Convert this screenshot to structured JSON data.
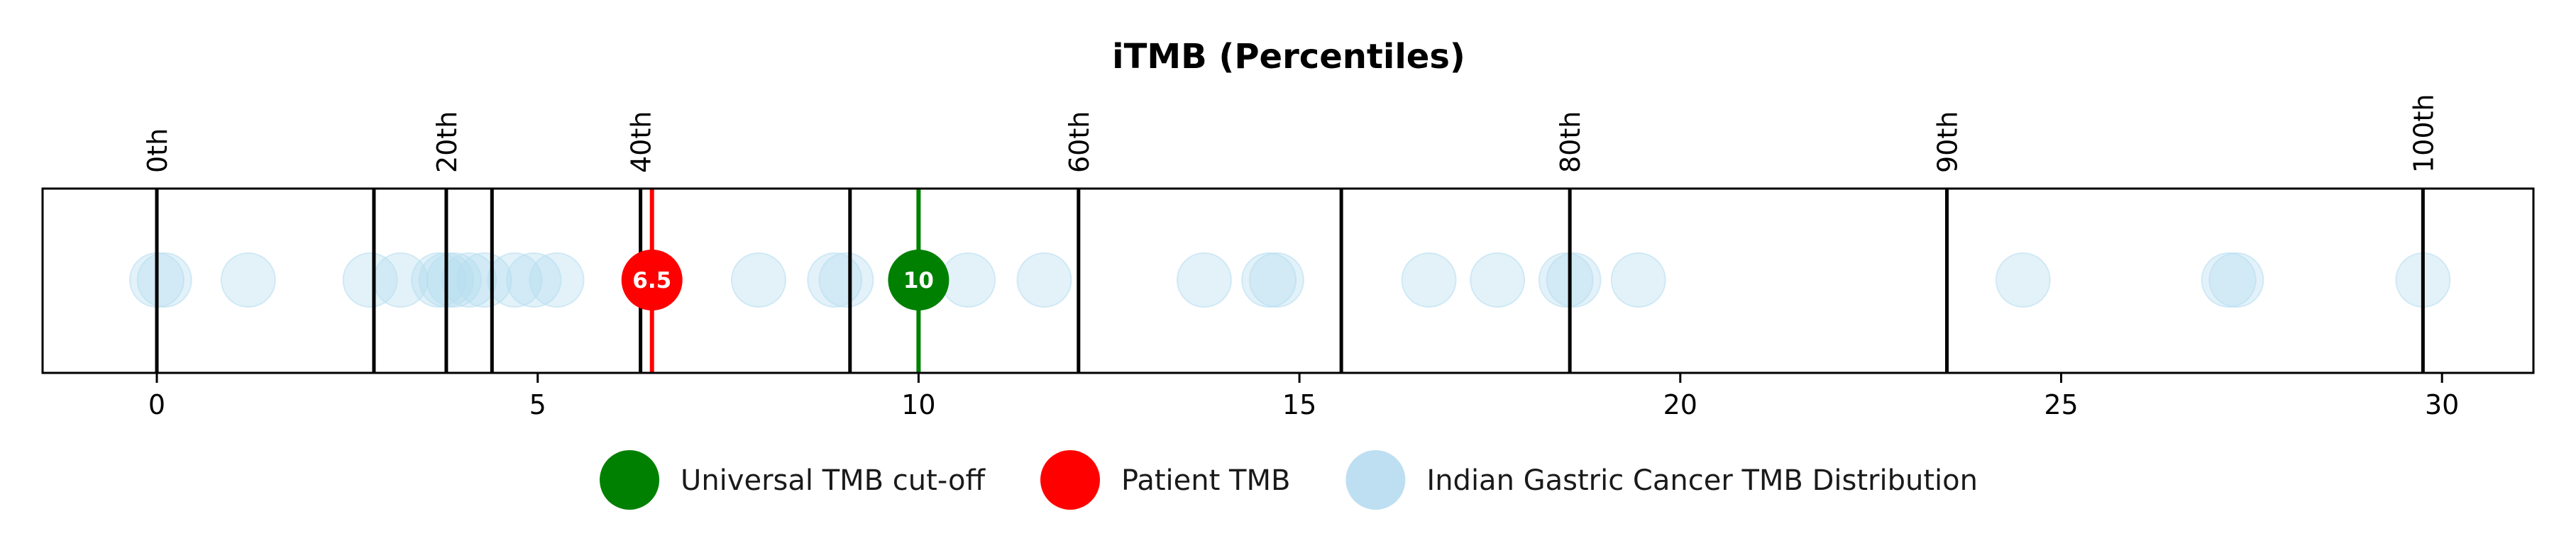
{
  "chart_data": {
    "type": "scatter",
    "title": "iTMB (Percentiles)",
    "xlabel": "",
    "ylabel": "",
    "xlim": [
      -1.5,
      31.2
    ],
    "x_ticks": [
      0,
      5,
      10,
      15,
      20,
      25,
      30
    ],
    "percentile_lines": [
      {
        "label": "0th",
        "x": 0.0
      },
      {
        "label": "",
        "x": 2.85
      },
      {
        "label": "20th",
        "x": 3.8
      },
      {
        "label": "",
        "x": 4.4
      },
      {
        "label": "40th",
        "x": 6.35
      },
      {
        "label": "",
        "x": 9.1
      },
      {
        "label": "60th",
        "x": 12.1
      },
      {
        "label": "",
        "x": 15.55
      },
      {
        "label": "80th",
        "x": 18.55
      },
      {
        "label": "90th",
        "x": 23.5
      },
      {
        "label": "100th",
        "x": 29.75
      }
    ],
    "distribution_values": [
      0.0,
      0.1,
      1.2,
      2.8,
      3.2,
      3.7,
      3.8,
      3.9,
      4.1,
      4.3,
      4.7,
      4.95,
      5.25,
      7.9,
      8.9,
      9.05,
      10.65,
      11.65,
      13.75,
      14.6,
      14.7,
      16.7,
      17.6,
      18.5,
      18.6,
      19.45,
      24.5,
      27.2,
      27.3,
      29.75
    ],
    "patient": {
      "value": 6.5,
      "label": "6.5",
      "color": "#ff0000"
    },
    "cutoff": {
      "value": 10,
      "label": "10",
      "color": "#008000"
    },
    "distribution_color": "#b6dcf0",
    "grid": false,
    "legend_position": "bottom-center",
    "legend": [
      {
        "label": "Universal TMB cut-off",
        "color": "#008000"
      },
      {
        "label": "Patient TMB",
        "color": "#ff0000"
      },
      {
        "label": "Indian Gastric Cancer TMB Distribution",
        "color": "#b6dcf0"
      }
    ]
  }
}
